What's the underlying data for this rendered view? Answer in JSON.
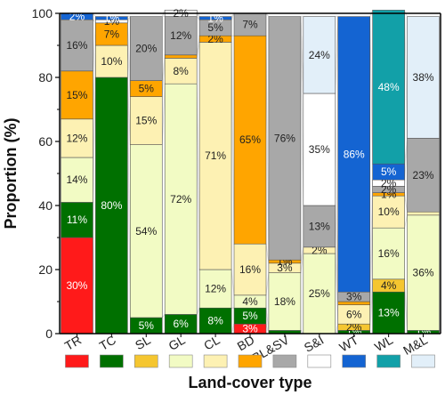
{
  "chart_data": {
    "type": "bar",
    "stacked": true,
    "xlabel": "Land-cover type",
    "ylabel": "Proportion (%)",
    "ylim": [
      0,
      100
    ],
    "yticks": [
      0,
      20,
      40,
      60,
      80,
      100
    ],
    "categories": [
      "TR",
      "TC",
      "SL",
      "GL",
      "CL",
      "BD",
      "BL&SV",
      "S&I",
      "WT",
      "WL",
      "M&L"
    ],
    "series": [
      {
        "name": "TR",
        "color": "#ff1a1a",
        "values": [
          30,
          0,
          0,
          0,
          0,
          3,
          0,
          0,
          0,
          0,
          0
        ],
        "labels": [
          "30%",
          "",
          "",
          "",
          "",
          "3%",
          "",
          "",
          "",
          "",
          ""
        ]
      },
      {
        "name": "TC",
        "color": "#007000",
        "values": [
          11,
          80,
          5,
          6,
          8,
          5,
          1,
          0,
          1,
          13,
          1
        ],
        "labels": [
          "11%",
          "80%",
          "5%",
          "6%",
          "8%",
          "5%",
          "",
          "",
          "1%",
          "13%",
          "1%"
        ]
      },
      {
        "name": "SL",
        "color": "#f5c630",
        "values": [
          0,
          0,
          0,
          0,
          0,
          0,
          0,
          0,
          2,
          4,
          0
        ],
        "labels": [
          "",
          "",
          "",
          "",
          "",
          "",
          "",
          "",
          "2%",
          "4%",
          ""
        ]
      },
      {
        "name": "GL",
        "color": "#f2fbc4",
        "values": [
          14,
          0,
          54,
          72,
          12,
          4,
          18,
          25,
          0,
          16,
          36
        ],
        "labels": [
          "14%",
          "",
          "54%",
          "72%",
          "12%",
          "4%",
          "18%",
          "25%",
          "",
          "16%",
          "36%"
        ]
      },
      {
        "name": "CL",
        "color": "#fdf1b3",
        "values": [
          12,
          10,
          15,
          8,
          71,
          16,
          3,
          2,
          6,
          10,
          1
        ],
        "labels": [
          "12%",
          "10%",
          "15%",
          "8%",
          "71%",
          "16%",
          "3%",
          "2%",
          "6%",
          "10%",
          ""
        ]
      },
      {
        "name": "BD",
        "color": "#ffa500",
        "values": [
          15,
          7,
          5,
          1,
          2,
          65,
          1,
          0,
          1,
          1,
          0
        ],
        "labels": [
          "15%",
          "7%",
          "5%",
          "",
          "2%",
          "65%",
          "1%",
          "",
          "",
          "1%",
          ""
        ]
      },
      {
        "name": "BL&SV",
        "color": "#a8a8a8",
        "values": [
          16,
          0,
          20,
          12,
          5,
          7,
          76,
          13,
          3,
          2,
          23
        ],
        "labels": [
          "16%",
          "",
          "20%",
          "12%",
          "5%",
          "7%",
          "76%",
          "13%",
          "3%",
          "2%",
          "23%"
        ]
      },
      {
        "name": "S&I",
        "color": "#ffffff",
        "values": [
          0,
          1,
          0,
          2,
          0,
          0,
          0,
          35,
          0,
          2,
          0
        ],
        "labels": [
          "",
          "1%",
          "",
          "2%",
          "",
          "",
          "",
          "35%",
          "",
          "2%",
          ""
        ]
      },
      {
        "name": "WT",
        "color": "#1464d2",
        "values": [
          2,
          1,
          0,
          0,
          1,
          0,
          0,
          0,
          86,
          5,
          0
        ],
        "labels": [
          "2%",
          "1%",
          "",
          "",
          "1%",
          "",
          "",
          "",
          "86%",
          "5%",
          ""
        ]
      },
      {
        "name": "WL",
        "color": "#12a0a8",
        "values": [
          0,
          0,
          0,
          0,
          0,
          0,
          0,
          0,
          0,
          48,
          0
        ],
        "labels": [
          "",
          "",
          "",
          "",
          "",
          "",
          "",
          "",
          "",
          "48%",
          ""
        ]
      },
      {
        "name": "M&L",
        "color": "#e2eff9",
        "values": [
          0,
          0,
          0,
          0,
          0,
          0,
          0,
          24,
          0,
          0,
          38
        ],
        "labels": [
          "",
          "",
          "",
          "",
          "",
          "",
          "",
          "24%",
          "",
          "",
          "38%"
        ]
      }
    ]
  }
}
